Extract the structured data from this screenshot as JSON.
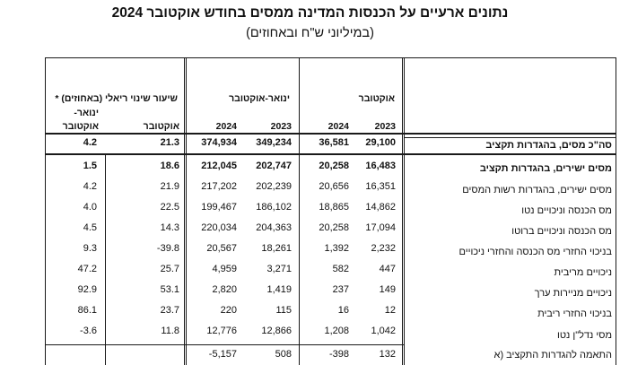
{
  "title": "נתונים ארעיים על הכנסות המדינה ממסים בחודש אוקטובר 2024",
  "subtitle": "(במיליוני ש\"ח ובאחוזים)",
  "header": {
    "real_change_line1": "שיעור שינוי ריאלי (באחוזים) *",
    "real_change_line2": "ינואר-",
    "real_change_ytd": "אוקטובר",
    "real_change_oct": "אוקטובר",
    "jan_oct": "ינואר-אוקטובר",
    "oct": "אוקטובר",
    "y2024_a": "2024",
    "y2023_a": "2023",
    "y2024_b": "2024",
    "y2023_b": "2023"
  },
  "rows": [
    {
      "label": "סה\"כ מסים, בהגדרות תקציב",
      "chg_ytd": "4.2",
      "chg_oct": "21.3",
      "jo2024": "374,934",
      "jo2023": "349,234",
      "o2024": "36,581",
      "o2023": "29,100"
    },
    {
      "label": "מסים ישירים, בהגדרות תקציב",
      "chg_ytd": "1.5",
      "chg_oct": "18.6",
      "jo2024": "212,045",
      "jo2023": "202,747",
      "o2024": "20,258",
      "o2023": "16,483"
    },
    {
      "label": "מסים ישירים, בהגדרות רשות המסים",
      "chg_ytd": "4.2",
      "chg_oct": "21.9",
      "jo2024": "217,202",
      "jo2023": "202,239",
      "o2024": "20,656",
      "o2023": "16,351"
    },
    {
      "label": "מס הכנסה וניכויים נטו",
      "chg_ytd": "4.0",
      "chg_oct": "22.5",
      "jo2024": "199,467",
      "jo2023": "186,102",
      "o2024": "18,865",
      "o2023": "14,862"
    },
    {
      "label": "מס הכנסה וניכויים ברוטו",
      "chg_ytd": "4.5",
      "chg_oct": "14.3",
      "jo2024": "220,034",
      "jo2023": "204,363",
      "o2024": "20,258",
      "o2023": "17,094"
    },
    {
      "label": "בניכוי החזרי מס הכנסה והחזרי ניכויים",
      "chg_ytd": "9.3",
      "chg_oct": "-39.8",
      "jo2024": "20,567",
      "jo2023": "18,261",
      "o2024": "1,392",
      "o2023": "2,232"
    },
    {
      "label": "ניכויים מריבית",
      "chg_ytd": "47.2",
      "chg_oct": "25.7",
      "jo2024": "4,959",
      "jo2023": "3,271",
      "o2024": "582",
      "o2023": "447"
    },
    {
      "label": "ניכויים מניירות ערך",
      "chg_ytd": "92.9",
      "chg_oct": "53.1",
      "jo2024": "2,820",
      "jo2023": "1,419",
      "o2024": "237",
      "o2023": "149"
    },
    {
      "label": "בניכוי החזרי ריבית",
      "chg_ytd": "86.1",
      "chg_oct": "23.7",
      "jo2024": "220",
      "jo2023": "115",
      "o2024": "16",
      "o2023": "12"
    },
    {
      "label": "מסי נדל\"ן נטו",
      "chg_ytd": "-3.6",
      "chg_oct": "11.8",
      "jo2024": "12,776",
      "jo2023": "12,866",
      "o2024": "1,208",
      "o2023": "1,042"
    },
    {
      "label": "התאמה להגדרות התקציב (א",
      "chg_ytd": "",
      "chg_oct": "",
      "jo2024": "-5,157",
      "jo2023": "508",
      "o2024": "-398",
      "o2023": "132"
    }
  ]
}
